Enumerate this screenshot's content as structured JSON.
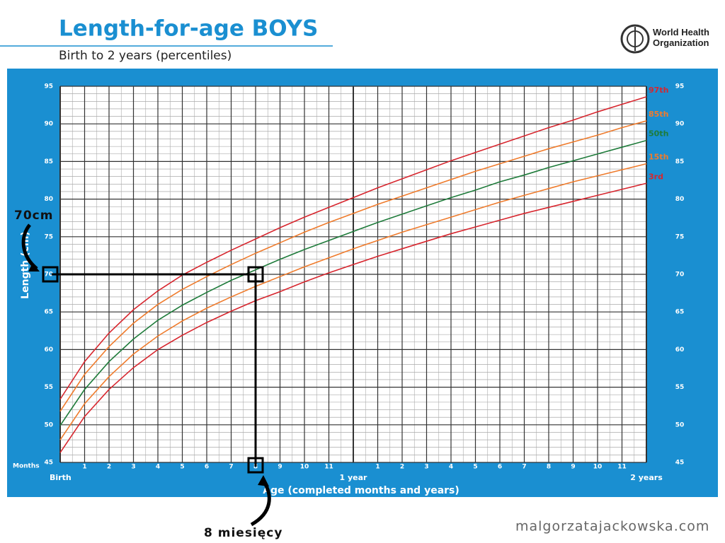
{
  "chart_data": {
    "type": "line",
    "title": "Length-for-age BOYS",
    "subtitle": "Birth to 2 years (percentiles)",
    "organization": "World Health Organization",
    "xlabel": "Age (completed months and years)",
    "ylabel": "Length (cm)",
    "xunit_label": "Months",
    "x": [
      0,
      1,
      2,
      3,
      4,
      5,
      6,
      7,
      8,
      9,
      10,
      11,
      12,
      13,
      14,
      15,
      16,
      17,
      18,
      19,
      20,
      21,
      22,
      23,
      24
    ],
    "xlim": [
      0,
      24
    ],
    "xticks": [
      {
        "value": 0,
        "label": "Birth"
      },
      1,
      2,
      3,
      4,
      5,
      6,
      7,
      8,
      9,
      10,
      11,
      {
        "value": 12,
        "label": "1 year"
      },
      {
        "value": 13,
        "label": "1"
      },
      {
        "value": 14,
        "label": "2"
      },
      {
        "value": 15,
        "label": "3"
      },
      {
        "value": 16,
        "label": "4"
      },
      {
        "value": 17,
        "label": "5"
      },
      {
        "value": 18,
        "label": "6"
      },
      {
        "value": 19,
        "label": "7"
      },
      {
        "value": 20,
        "label": "8"
      },
      {
        "value": 21,
        "label": "9"
      },
      {
        "value": 22,
        "label": "10"
      },
      {
        "value": 23,
        "label": "11"
      },
      {
        "value": 24,
        "label": "2 years"
      }
    ],
    "ylim": [
      45,
      95
    ],
    "yticks": [
      45,
      50,
      55,
      60,
      65,
      70,
      75,
      80,
      85,
      90,
      95
    ],
    "grid": true,
    "series": [
      {
        "name": "97th",
        "color": "#d7262e",
        "values": [
          53.4,
          58.4,
          62.2,
          65.3,
          67.8,
          69.9,
          71.6,
          73.2,
          74.7,
          76.2,
          77.6,
          78.9,
          80.2,
          81.5,
          82.7,
          83.9,
          85.1,
          86.2,
          87.3,
          88.4,
          89.5,
          90.5,
          91.6,
          92.6,
          93.6
        ]
      },
      {
        "name": "85th",
        "color": "#ef7b2c",
        "values": [
          51.8,
          56.7,
          60.4,
          63.5,
          66.0,
          68.0,
          69.7,
          71.3,
          72.8,
          74.2,
          75.6,
          76.9,
          78.1,
          79.3,
          80.4,
          81.5,
          82.6,
          83.7,
          84.7,
          85.7,
          86.7,
          87.6,
          88.5,
          89.5,
          90.4
        ]
      },
      {
        "name": "50th",
        "color": "#1e7b3a",
        "values": [
          49.9,
          54.7,
          58.4,
          61.4,
          63.9,
          65.9,
          67.6,
          69.2,
          70.6,
          72.0,
          73.3,
          74.5,
          75.7,
          76.9,
          78.0,
          79.1,
          80.2,
          81.2,
          82.3,
          83.2,
          84.2,
          85.1,
          86.0,
          86.9,
          87.8
        ]
      },
      {
        "name": "15th",
        "color": "#ef7b2c",
        "values": [
          48.0,
          52.8,
          56.4,
          59.4,
          61.8,
          63.8,
          65.5,
          67.0,
          68.4,
          69.7,
          71.0,
          72.2,
          73.4,
          74.5,
          75.6,
          76.6,
          77.6,
          78.6,
          79.6,
          80.5,
          81.4,
          82.3,
          83.1,
          83.9,
          84.7
        ]
      },
      {
        "name": "3rd",
        "color": "#d7262e",
        "values": [
          46.3,
          51.1,
          54.7,
          57.6,
          60.0,
          61.9,
          63.6,
          65.1,
          66.5,
          67.7,
          69.0,
          70.2,
          71.3,
          72.4,
          73.4,
          74.4,
          75.4,
          76.3,
          77.2,
          78.1,
          78.9,
          79.7,
          80.5,
          81.3,
          82.1
        ]
      }
    ],
    "marker": {
      "x": 8,
      "y": 70,
      "y_label": "70cm",
      "x_label": "8 miesięcy"
    },
    "watermark": "malgorzatajackowska.com"
  }
}
